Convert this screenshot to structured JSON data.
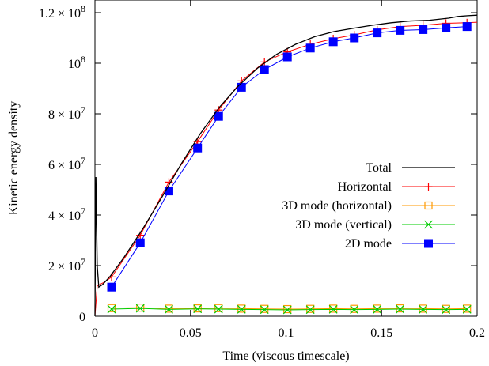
{
  "chart_data": {
    "type": "line",
    "xlabel": "Time (viscous timescale)",
    "ylabel": "Kinetic energy density",
    "xlim": [
      0,
      0.2
    ],
    "ylim": [
      0,
      125000000
    ],
    "grid": false,
    "legend_position": "right",
    "x_ticks": [
      {
        "value": 0,
        "label": "0"
      },
      {
        "value": 0.05,
        "label": "0.05"
      },
      {
        "value": 0.1,
        "label": "0.1"
      },
      {
        "value": 0.15,
        "label": "0.15"
      },
      {
        "value": 0.2,
        "label": "0.2"
      }
    ],
    "y_ticks": [
      {
        "value": 0,
        "label": "0"
      },
      {
        "value": 20000000,
        "mantissa": "2",
        "exponent": "7"
      },
      {
        "value": 40000000,
        "mantissa": "4",
        "exponent": "7"
      },
      {
        "value": 60000000,
        "mantissa": "6",
        "exponent": "7"
      },
      {
        "value": 80000000,
        "mantissa": "8",
        "exponent": "7"
      },
      {
        "value": 100000000,
        "mantissa": "",
        "exponent": "8"
      },
      {
        "value": 120000000,
        "mantissa": "1.2",
        "exponent": "8"
      }
    ],
    "series": [
      {
        "name": "Total",
        "color": "#000000",
        "marker": "none",
        "x": [
          0,
          0.0005,
          0.0012,
          0.002,
          0.004,
          0.008,
          0.015,
          0.025,
          0.035,
          0.045,
          0.055,
          0.065,
          0.075,
          0.085,
          0.095,
          0.105,
          0.115,
          0.125,
          0.135,
          0.145,
          0.155,
          0.165,
          0.175,
          0.185,
          0.19,
          0.195,
          0.2
        ],
        "values": [
          0,
          55000000,
          20000000,
          11500000,
          12500000,
          15800000,
          23000000,
          34500000,
          47000000,
          60000000,
          72000000,
          82500000,
          91000000,
          98000000,
          103500000,
          107500000,
          110500000,
          112500000,
          113800000,
          115000000,
          116000000,
          116700000,
          117000000,
          117800000,
          118500000,
          118800000,
          119000000
        ]
      },
      {
        "name": "Horizontal",
        "color": "#ff0000",
        "marker": "plus",
        "x": [
          0,
          0.0012,
          0.0025,
          0.005,
          0.0087,
          0.0237,
          0.0387,
          0.0537,
          0.0647,
          0.0767,
          0.0887,
          0.1007,
          0.1127,
          0.1247,
          0.1357,
          0.1477,
          0.1597,
          0.1717,
          0.1837,
          0.1947,
          0.2
        ],
        "marker_x": [
          0.0087,
          0.0237,
          0.0387,
          0.0537,
          0.0647,
          0.0767,
          0.0887,
          0.1007,
          0.1127,
          0.1247,
          0.1357,
          0.1477,
          0.1597,
          0.1717,
          0.1837,
          0.1947
        ],
        "values": [
          0,
          12000000,
          12500000,
          13500000,
          15500000,
          32000000,
          53000000,
          69000000,
          81500000,
          93000000,
          100500000,
          104500000,
          107500000,
          109700000,
          111200000,
          113200000,
          114500000,
          115000000,
          115800000,
          116000000,
          116200000
        ]
      },
      {
        "name": "3D mode (horizontal)",
        "color": "#ff9900",
        "marker": "open-square",
        "x": [
          0.0087,
          0.0237,
          0.0387,
          0.0537,
          0.0647,
          0.0767,
          0.0887,
          0.1007,
          0.1127,
          0.1247,
          0.1357,
          0.1477,
          0.1597,
          0.1717,
          0.1837,
          0.1947
        ],
        "values": [
          3200000,
          3400000,
          3000000,
          3100000,
          3200000,
          3000000,
          2900000,
          2800000,
          2900000,
          3000000,
          2900000,
          3000000,
          3100000,
          3000000,
          2900000,
          3000000
        ]
      },
      {
        "name": "3D mode (vertical)",
        "color": "#00cc00",
        "marker": "x",
        "x": [
          0.0087,
          0.0237,
          0.0387,
          0.0537,
          0.0647,
          0.0767,
          0.0887,
          0.1007,
          0.1127,
          0.1247,
          0.1357,
          0.1477,
          0.1597,
          0.1717,
          0.1837,
          0.1947
        ],
        "values": [
          2800000,
          3100000,
          2700000,
          2900000,
          2800000,
          2700000,
          2600000,
          2500000,
          2600000,
          2700000,
          2600000,
          2700000,
          2800000,
          2700000,
          2600000,
          2700000
        ]
      },
      {
        "name": "2D mode",
        "color": "#0000ff",
        "marker": "filled-square",
        "x": [
          0.0087,
          0.0237,
          0.0387,
          0.0537,
          0.0647,
          0.0767,
          0.0887,
          0.1007,
          0.1127,
          0.1247,
          0.1357,
          0.1477,
          0.1597,
          0.1717,
          0.1837,
          0.1947
        ],
        "values": [
          11500000,
          29000000,
          49500000,
          66500000,
          79000000,
          90500000,
          97500000,
          102500000,
          106000000,
          108500000,
          110000000,
          112000000,
          113000000,
          113300000,
          114000000,
          114500000
        ]
      }
    ]
  }
}
